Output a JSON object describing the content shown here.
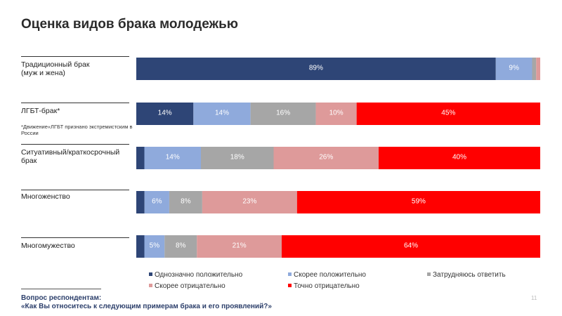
{
  "title": "Оценка видов брака молодежью",
  "note": "*Движение«ЛГБТ признано экстремистским в России",
  "question": {
    "label": "Вопрос респондентам:",
    "text": "«Как Вы относитесь к следующим примерам брака и его проявлений?»"
  },
  "page_number": "11",
  "colors": {
    "s1": "#2e4576",
    "s2": "#8faadc",
    "s3": "#a6a6a6",
    "s4": "#de9a9a",
    "s5": "#ff0000"
  },
  "chart_data": {
    "type": "bar",
    "orientation": "horizontal",
    "stacked": true,
    "categories": [
      [
        "Традиционный брак",
        "(муж и жена)"
      ],
      [
        "ЛГБТ-брак*"
      ],
      [
        "Ситуативный/краткосрочный",
        "брак"
      ],
      [
        "Многоженство"
      ],
      [
        "Многомужество"
      ]
    ],
    "series": [
      {
        "name": "Однозначно положительно",
        "values": [
          89,
          14,
          2,
          2,
          2
        ],
        "labels": [
          "89%",
          "14%",
          "",
          "",
          ""
        ]
      },
      {
        "name": "Скорее положительно",
        "values": [
          9,
          14,
          14,
          6,
          5
        ],
        "labels": [
          "9%",
          "14%",
          "14%",
          "6%",
          "5%"
        ]
      },
      {
        "name": "Затрудняюсь ответить",
        "values": [
          1,
          16,
          18,
          8,
          8
        ],
        "labels": [
          "",
          "16%",
          "18%",
          "8%",
          "8%"
        ]
      },
      {
        "name": "Скорее отрицательно",
        "values": [
          1,
          10,
          26,
          23,
          21
        ],
        "labels": [
          "",
          "10%",
          "26%",
          "23%",
          "21%"
        ]
      },
      {
        "name": "Точно отрицательно",
        "values": [
          0,
          45,
          40,
          59,
          64
        ],
        "labels": [
          "",
          "45%",
          "40%",
          "59%",
          "64%"
        ]
      }
    ],
    "xlim": [
      0,
      100
    ],
    "grid": false,
    "legend_position": "bottom"
  }
}
